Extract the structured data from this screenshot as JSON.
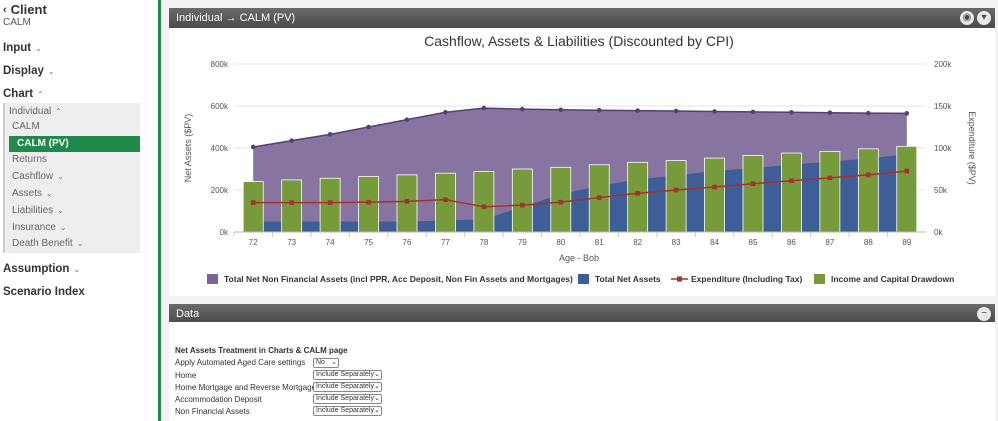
{
  "sidebar": {
    "back_label": "Client",
    "subtitle": "CALM",
    "sections": [
      {
        "label": "Input"
      },
      {
        "label": "Display"
      },
      {
        "label": "Chart"
      }
    ],
    "chart_items": [
      {
        "label": "Individual"
      },
      {
        "label": "CALM"
      },
      {
        "label": "CALM (PV)"
      },
      {
        "label": "Returns"
      },
      {
        "label": "Cashflow"
      },
      {
        "label": "Assets"
      },
      {
        "label": "Liabilities"
      },
      {
        "label": "Insurance"
      },
      {
        "label": "Death Benefit"
      }
    ],
    "bottom": [
      {
        "label": "Assumption"
      },
      {
        "label": "Scenario Index"
      }
    ]
  },
  "chart_panel": {
    "title": "Individual → CALM (PV)"
  },
  "data_panel": {
    "title": "Data"
  },
  "data_form": {
    "heading": "Net Assets Treatment in Charts & CALM page",
    "rows": [
      {
        "label": "Apply Automated Aged Care settings",
        "value": "No"
      },
      {
        "label": "Home",
        "value": "Include Separately"
      },
      {
        "label": "Home Mortgage and Reverse Mortgage",
        "value": "Include Separately"
      },
      {
        "label": "Accommodation Deposit",
        "value": "Include Separately"
      },
      {
        "label": "Non Financial Assets",
        "value": "Include Separately"
      }
    ]
  },
  "colors": {
    "purple": "#7b6596",
    "blue": "#3d5e96",
    "green": "#779a3b",
    "red": "#a5302d",
    "accent": "#1f8a4c"
  },
  "chart_data": {
    "type": "bar",
    "title": "Cashflow, Assets & Liabilities (Discounted by CPI)",
    "xlabel": "Age - Bob",
    "ylabel_left": "Net Assets ($PV)",
    "ylabel_right": "Expenditure ($PV)",
    "ylim_left": [
      0,
      800000
    ],
    "ylim_right": [
      0,
      200000
    ],
    "yticks_left": [
      "0k",
      "200k",
      "400k",
      "600k",
      "800k"
    ],
    "yticks_right": [
      "0k",
      "50k",
      "100k",
      "150k",
      "200k"
    ],
    "categories": [
      "72",
      "73",
      "74",
      "75",
      "76",
      "77",
      "78",
      "79",
      "80",
      "81",
      "82",
      "83",
      "84",
      "85",
      "86",
      "87",
      "88",
      "89"
    ],
    "series": [
      {
        "name": "Total Net Non Financial Assets (incl PPR, Acc Deposit, Non Fin Assets and Mortgages)",
        "type": "area",
        "axis": "left",
        "values": [
          405000,
          435000,
          465000,
          500000,
          535000,
          570000,
          590000,
          585000,
          582000,
          580000,
          578000,
          576000,
          574000,
          572000,
          570000,
          568000,
          566000,
          565000
        ]
      },
      {
        "name": "Total Net Assets",
        "type": "area",
        "axis": "left",
        "values": [
          50000,
          50000,
          50000,
          50000,
          50000,
          55000,
          60000,
          120000,
          180000,
          220000,
          250000,
          270000,
          290000,
          305000,
          320000,
          335000,
          350000,
          370000
        ]
      },
      {
        "name": "Expenditure (Including Tax)",
        "type": "line",
        "axis": "right",
        "values": [
          35000,
          35000,
          35000,
          35500,
          36500,
          38500,
          30000,
          32000,
          35500,
          41000,
          46000,
          50000,
          53500,
          57500,
          61000,
          64500,
          68000,
          72500
        ]
      },
      {
        "name": "Income and Capital Drawdown",
        "type": "bar",
        "axis": "right",
        "values": [
          60000,
          62000,
          64000,
          66000,
          68000,
          70000,
          72000,
          75000,
          77000,
          80000,
          83000,
          85000,
          88000,
          91000,
          94000,
          96000,
          99000,
          102000
        ]
      }
    ]
  }
}
